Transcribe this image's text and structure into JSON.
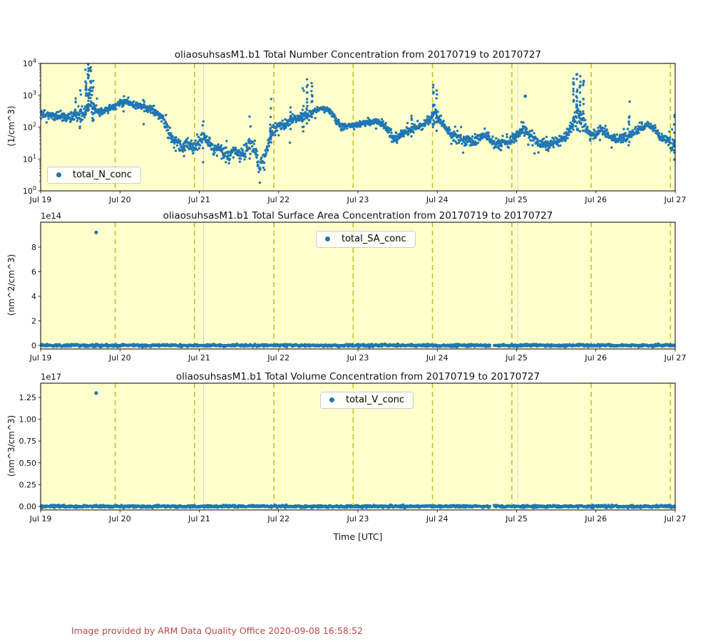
{
  "plots": [
    {
      "title": "oliaosuhsasM1.b1 Total Number Concentration from 20170719 to 20170727",
      "ylabel": "(1/cm^3)",
      "legend": "total_N_conc"
    },
    {
      "title": "oliaosuhsasM1.b1 Total Surface Area Concentration from 20170719 to 20170727",
      "ylabel": "(nm^2/cm^3)",
      "legend": "total_SA_conc",
      "offset": "1e14"
    },
    {
      "title": "oliaosuhsasM1.b1 Total Volume Concentration from 20170719 to 20170727",
      "ylabel": "(nm^3/cm^3)",
      "legend": "total_V_conc",
      "offset": "1e17",
      "xlabel": "Time [UTC]"
    }
  ],
  "footer": {
    "text": "Image provided by ARM Data Quality Office 2020-09-08 16:58:52"
  },
  "colors": {
    "point_blue": "#1f77b4",
    "axes_background": "#ffffcc",
    "day_dashed_line": "#c3c31e",
    "faint_gray_line": "#d3d3d3",
    "footer_red": "#b4484d"
  },
  "chart_data": [
    {
      "id": "total_number_concentration",
      "type": "scatter",
      "series_name": "total_N_conc",
      "x_unit": "days_since_Jul19_00UTC",
      "x_range": [
        0,
        8
      ],
      "x_ticks": [
        0,
        1,
        2,
        3,
        4,
        5,
        6,
        7,
        8
      ],
      "x_ticklabels": [
        "Jul 19",
        "Jul 20",
        "Jul 21",
        "Jul 22",
        "Jul 23",
        "Jul 24",
        "Jul 25",
        "Jul 26",
        "Jul 27"
      ],
      "y_scale": "log10",
      "y_unit": "1/cm^3",
      "ylim_log10": [
        0,
        4
      ],
      "y_tick_exponents": [
        0,
        1,
        2,
        3,
        4
      ],
      "dashed_day_lines": [
        0.94,
        1.94,
        2.94,
        3.94,
        4.94,
        5.94,
        6.94,
        7.94
      ],
      "gray_lines": [
        2.055,
        6.015
      ],
      "points_per_day": 280,
      "envelope_keypoints_day_log10_spread": [
        [
          0.0,
          2.45,
          0.1
        ],
        [
          0.1,
          2.4,
          0.1
        ],
        [
          0.2,
          2.32,
          0.1
        ],
        [
          0.3,
          2.28,
          0.14
        ],
        [
          0.4,
          2.33,
          0.16
        ],
        [
          0.5,
          2.42,
          0.18
        ],
        [
          0.58,
          2.55,
          0.25
        ],
        [
          0.62,
          2.85,
          0.35
        ],
        [
          0.66,
          2.6,
          0.25
        ],
        [
          0.72,
          2.48,
          0.12
        ],
        [
          0.8,
          2.52,
          0.1
        ],
        [
          0.9,
          2.62,
          0.1
        ],
        [
          1.0,
          2.76,
          0.08
        ],
        [
          1.08,
          2.8,
          0.08
        ],
        [
          1.15,
          2.72,
          0.08
        ],
        [
          1.25,
          2.65,
          0.09
        ],
        [
          1.35,
          2.6,
          0.1
        ],
        [
          1.45,
          2.48,
          0.1
        ],
        [
          1.52,
          2.32,
          0.12
        ],
        [
          1.58,
          2.1,
          0.15
        ],
        [
          1.63,
          1.75,
          0.22
        ],
        [
          1.7,
          1.55,
          0.2
        ],
        [
          1.78,
          1.4,
          0.2
        ],
        [
          1.85,
          1.48,
          0.18
        ],
        [
          1.92,
          1.35,
          0.18
        ],
        [
          2.0,
          1.5,
          0.15
        ],
        [
          2.05,
          1.75,
          0.15
        ],
        [
          2.1,
          1.55,
          0.15
        ],
        [
          2.18,
          1.32,
          0.16
        ],
        [
          2.25,
          1.3,
          0.18
        ],
        [
          2.32,
          1.15,
          0.2
        ],
        [
          2.38,
          1.05,
          0.22
        ],
        [
          2.45,
          1.3,
          0.16
        ],
        [
          2.52,
          1.1,
          0.2
        ],
        [
          2.58,
          1.25,
          0.18
        ],
        [
          2.64,
          1.55,
          0.18
        ],
        [
          2.7,
          1.25,
          0.2
        ],
        [
          2.76,
          0.75,
          0.22
        ],
        [
          2.82,
          1.0,
          0.22
        ],
        [
          2.88,
          1.6,
          0.2
        ],
        [
          2.93,
          1.95,
          0.15
        ],
        [
          3.0,
          2.08,
          0.12
        ],
        [
          3.08,
          2.05,
          0.12
        ],
        [
          3.15,
          2.22,
          0.12
        ],
        [
          3.22,
          2.28,
          0.1
        ],
        [
          3.3,
          2.32,
          0.12
        ],
        [
          3.38,
          2.42,
          0.12
        ],
        [
          3.46,
          2.52,
          0.08
        ],
        [
          3.55,
          2.6,
          0.06
        ],
        [
          3.62,
          2.55,
          0.06
        ],
        [
          3.68,
          2.42,
          0.08
        ],
        [
          3.74,
          2.15,
          0.1
        ],
        [
          3.8,
          2.0,
          0.1
        ],
        [
          3.9,
          2.04,
          0.08
        ],
        [
          4.0,
          2.08,
          0.08
        ],
        [
          4.1,
          2.13,
          0.08
        ],
        [
          4.2,
          2.18,
          0.09
        ],
        [
          4.3,
          2.12,
          0.1
        ],
        [
          4.4,
          1.9,
          0.14
        ],
        [
          4.47,
          1.6,
          0.18
        ],
        [
          4.55,
          1.78,
          0.14
        ],
        [
          4.65,
          1.92,
          0.12
        ],
        [
          4.75,
          2.02,
          0.12
        ],
        [
          4.85,
          2.1,
          0.1
        ],
        [
          4.93,
          2.3,
          0.15
        ],
        [
          4.97,
          2.55,
          0.2
        ],
        [
          5.02,
          2.25,
          0.12
        ],
        [
          5.08,
          2.05,
          0.12
        ],
        [
          5.15,
          1.85,
          0.14
        ],
        [
          5.25,
          1.65,
          0.16
        ],
        [
          5.35,
          1.58,
          0.16
        ],
        [
          5.45,
          1.55,
          0.16
        ],
        [
          5.55,
          1.7,
          0.14
        ],
        [
          5.62,
          1.72,
          0.12
        ],
        [
          5.7,
          1.5,
          0.16
        ],
        [
          5.8,
          1.45,
          0.16
        ],
        [
          5.9,
          1.55,
          0.14
        ],
        [
          6.0,
          1.72,
          0.14
        ],
        [
          6.06,
          1.95,
          0.14
        ],
        [
          6.12,
          1.85,
          0.12
        ],
        [
          6.2,
          1.65,
          0.16
        ],
        [
          6.3,
          1.48,
          0.16
        ],
        [
          6.4,
          1.45,
          0.14
        ],
        [
          6.5,
          1.55,
          0.12
        ],
        [
          6.6,
          1.62,
          0.12
        ],
        [
          6.68,
          1.9,
          0.2
        ],
        [
          6.75,
          2.3,
          0.35
        ],
        [
          6.82,
          2.2,
          0.3
        ],
        [
          6.9,
          1.8,
          0.15
        ],
        [
          7.0,
          1.75,
          0.15
        ],
        [
          7.06,
          1.95,
          0.15
        ],
        [
          7.12,
          1.8,
          0.14
        ],
        [
          7.2,
          1.62,
          0.14
        ],
        [
          7.3,
          1.65,
          0.12
        ],
        [
          7.4,
          1.7,
          0.14
        ],
        [
          7.5,
          1.85,
          0.12
        ],
        [
          7.58,
          2.0,
          0.1
        ],
        [
          7.65,
          2.08,
          0.08
        ],
        [
          7.72,
          1.95,
          0.1
        ],
        [
          7.8,
          1.75,
          0.12
        ],
        [
          7.9,
          1.6,
          0.14
        ],
        [
          7.96,
          1.42,
          0.22
        ],
        [
          8.0,
          1.55,
          0.35
        ]
      ],
      "spike_columns_day_log10top_count": [
        [
          0.44,
          2.9,
          5
        ],
        [
          0.5,
          3.15,
          6
        ],
        [
          0.57,
          3.8,
          12
        ],
        [
          0.6,
          3.96,
          16
        ],
        [
          0.63,
          3.88,
          14
        ],
        [
          0.66,
          3.45,
          9
        ],
        [
          1.05,
          2.97,
          5
        ],
        [
          1.3,
          2.85,
          4
        ],
        [
          2.05,
          2.18,
          5
        ],
        [
          2.64,
          2.33,
          4
        ],
        [
          2.9,
          2.88,
          9
        ],
        [
          3.15,
          2.62,
          4
        ],
        [
          3.31,
          3.22,
          9
        ],
        [
          3.36,
          3.5,
          12
        ],
        [
          3.42,
          3.38,
          9
        ],
        [
          4.68,
          2.35,
          4
        ],
        [
          4.95,
          3.32,
          12
        ],
        [
          4.99,
          3.15,
          8
        ],
        [
          6.72,
          3.52,
          14
        ],
        [
          6.76,
          3.66,
          18
        ],
        [
          6.8,
          3.6,
          14
        ],
        [
          6.84,
          3.45,
          10
        ],
        [
          7.42,
          2.8,
          8
        ],
        [
          7.99,
          2.38,
          6
        ]
      ],
      "isolated_points_day_log10": [
        [
          6.11,
          2.97
        ]
      ]
    },
    {
      "id": "total_surface_area_concentration",
      "type": "scatter",
      "series_name": "total_SA_conc",
      "x_range": [
        0,
        8
      ],
      "x_ticklabels": [
        "Jul 19",
        "Jul 20",
        "Jul 21",
        "Jul 22",
        "Jul 23",
        "Jul 24",
        "Jul 25",
        "Jul 26",
        "Jul 27"
      ],
      "y_scale": "linear",
      "y_unit": "nm^2/cm^3",
      "y_offset_factor": "1e14",
      "ylim_in_1e14": [
        -0.29,
        10.03
      ],
      "y_ticks_in_1e14": [
        0,
        2,
        4,
        6,
        8
      ],
      "y_ticklabels": [
        "0",
        "2",
        "4",
        "6",
        "8"
      ],
      "dashed_day_lines": [
        0.94,
        1.94,
        2.94,
        3.94,
        4.94,
        5.94,
        6.94,
        7.94
      ],
      "gray_lines": [
        2.055,
        6.015
      ],
      "band": {
        "value": 0,
        "step_days": 0.006,
        "gap_days": [
          5.665,
          5.715
        ]
      },
      "outliers_day_value_1e14": [
        [
          0.7,
          9.2
        ]
      ]
    },
    {
      "id": "total_volume_concentration",
      "type": "scatter",
      "series_name": "total_V_conc",
      "x_range": [
        0,
        8
      ],
      "x_ticklabels": [
        "Jul 19",
        "Jul 20",
        "Jul 21",
        "Jul 22",
        "Jul 23",
        "Jul 24",
        "Jul 25",
        "Jul 26",
        "Jul 27"
      ],
      "y_scale": "linear",
      "y_unit": "nm^3/cm^3",
      "y_offset_factor": "1e17",
      "ylim_in_1e17": [
        -0.041,
        1.414
      ],
      "y_ticks_in_1e17": [
        0,
        0.25,
        0.5,
        0.75,
        1.0,
        1.25
      ],
      "y_ticklabels": [
        "0.00",
        "0.25",
        "0.50",
        "0.75",
        "1.00",
        "1.25"
      ],
      "dashed_day_lines": [
        0.94,
        1.94,
        2.94,
        3.94,
        4.94,
        5.94,
        6.94,
        7.94
      ],
      "gray_lines": [
        2.055,
        6.015
      ],
      "band": {
        "value": 0,
        "step_days": 0.006,
        "gap_days": [
          5.665,
          5.715
        ]
      },
      "outliers_day_value_1e17": [
        [
          0.7,
          1.3
        ]
      ]
    }
  ]
}
